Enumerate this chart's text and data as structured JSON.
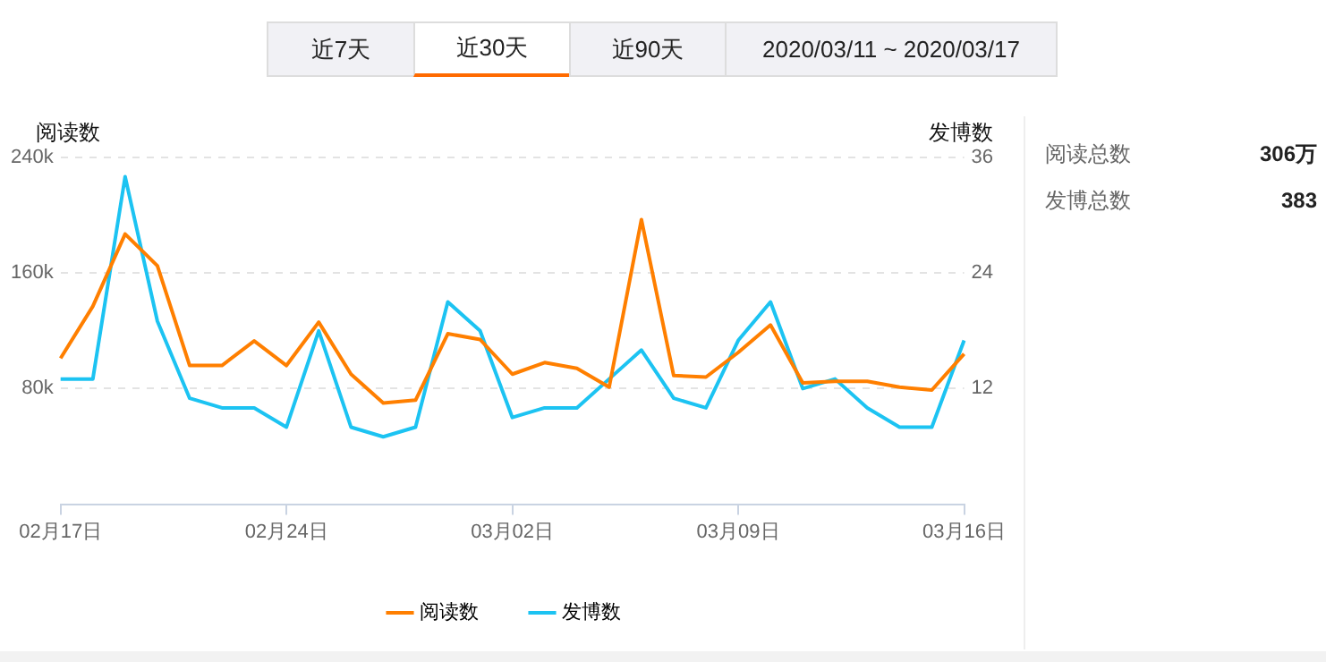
{
  "chart_data": {
    "type": "line",
    "categories": [
      "02月17日",
      null,
      null,
      null,
      null,
      null,
      null,
      "02月24日",
      null,
      null,
      null,
      null,
      null,
      null,
      "03月02日",
      null,
      null,
      null,
      null,
      null,
      null,
      "03月09日",
      null,
      null,
      null,
      null,
      null,
      null,
      "03月16日"
    ],
    "series": [
      {
        "name": "阅读数",
        "color": "#ff7f00",
        "values": [
          101000,
          137000,
          187000,
          165000,
          96000,
          96000,
          113000,
          96000,
          126000,
          90000,
          70000,
          72000,
          118000,
          114000,
          90000,
          98000,
          94000,
          81000,
          197000,
          89000,
          88000,
          105000,
          124000,
          84000,
          85000,
          85000,
          81000,
          79000,
          104000
        ]
      },
      {
        "name": "发博数",
        "color": "#1cc3f2",
        "axis": "y2",
        "values": [
          13,
          13,
          34,
          19,
          11,
          10,
          10,
          8,
          18,
          8,
          7,
          8,
          21,
          18,
          9,
          10,
          10,
          13,
          16,
          11,
          10,
          17,
          21,
          12,
          13,
          10,
          8,
          8,
          17
        ]
      }
    ],
    "ylabel": "阅读数",
    "y2label": "发博数",
    "ylim": [
      0,
      240000
    ],
    "yticks": [
      {
        "value": 80000,
        "label": "80k"
      },
      {
        "value": 160000,
        "label": "160k"
      },
      {
        "value": 240000,
        "label": "240k"
      }
    ],
    "y2lim": [
      0,
      36
    ],
    "y2ticks": [
      12,
      24,
      36
    ],
    "grid": "y",
    "legend": "bottom",
    "marker": "none",
    "line_style": "solid",
    "annotations": [
      "近7天",
      "近30天",
      "近90天",
      "2020/03/11 ~ 2020/03/17",
      "阅读总数",
      "306万",
      "发博总数",
      "383"
    ]
  }
}
